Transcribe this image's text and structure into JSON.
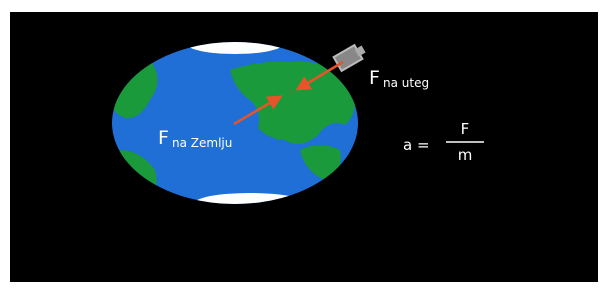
{
  "labels": {
    "force_on_weight": {
      "symbol": "F",
      "subscript": "na uteg"
    },
    "force_on_earth": {
      "symbol": "F",
      "subscript": "na Zemlju"
    }
  },
  "formula": {
    "lhs": "a =",
    "numerator": "F",
    "denominator": "m"
  }
}
